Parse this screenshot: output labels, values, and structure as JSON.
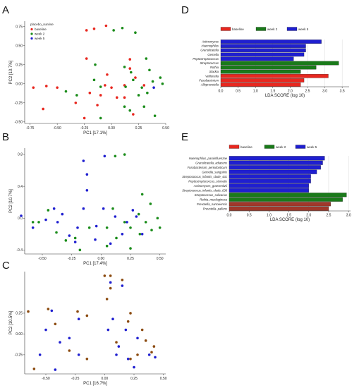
{
  "colors": {
    "baseline": "#e8271f",
    "week2": "#1a8c1a",
    "week5": "#1f1fd0",
    "pcoaC_a": "#8b4a0f",
    "pcoaC_b": "#1f1fd0",
    "ldaRed": "#e8271f",
    "ldaGreen": "#1a7a1a",
    "ldaBlue": "#1f1fd0",
    "ldaBrown": "#a0382a"
  },
  "panels": {
    "A": "A",
    "B": "B",
    "C": "C",
    "D": "D",
    "E": "E"
  },
  "chart_data": [
    {
      "type": "scatter",
      "panel": "A",
      "xlabel": "PC1 [17.1%]",
      "ylabel": "PC2 [10.7%]",
      "xlim": [
        -0.8,
        0.5
      ],
      "ylim": [
        -0.52,
        0.82
      ],
      "xticks": [
        "-0.75",
        "-0.50",
        "-0.25",
        "0.00",
        "0.25",
        "0.50"
      ],
      "xtick_vals": [
        -0.75,
        -0.5,
        -0.25,
        0,
        0.25,
        0.5
      ],
      "yticks": [
        "0.75",
        "0.50",
        "0.25",
        "0.00",
        "-0.25",
        "-0.50"
      ],
      "ytick_vals": [
        0.75,
        0.5,
        0.25,
        0,
        -0.25,
        -0.5
      ],
      "legend_title": "placebo_sunrise",
      "series": [
        {
          "name": "baseline",
          "color_key": "baseline",
          "points": [
            [
              -0.23,
              0.7
            ],
            [
              -0.16,
              0.72
            ],
            [
              -0.05,
              0.76
            ],
            [
              -0.23,
              0.33
            ],
            [
              -0.04,
              0.12
            ],
            [
              0.17,
              0.2
            ],
            [
              0.22,
              0.08
            ],
            [
              -0.06,
              -0.02
            ],
            [
              0.0,
              -0.05
            ],
            [
              0.12,
              -0.02
            ],
            [
              0.3,
              -0.02
            ],
            [
              -0.72,
              -0.05
            ],
            [
              -0.6,
              -0.03
            ],
            [
              -0.5,
              -0.05
            ],
            [
              -0.2,
              -0.12
            ],
            [
              -0.1,
              -0.15
            ],
            [
              0.05,
              -0.18
            ],
            [
              0.12,
              -0.18
            ],
            [
              -0.33,
              -0.25
            ],
            [
              -0.13,
              -0.28
            ],
            [
              -0.63,
              -0.33
            ],
            [
              -0.25,
              -0.45
            ],
            [
              0.2,
              -0.4
            ],
            [
              0.17,
              0.32
            ]
          ]
        },
        {
          "name": "week 2",
          "color_key": "week2",
          "points": [
            [
              0.1,
              0.73
            ],
            [
              0.02,
              0.7
            ],
            [
              0.22,
              0.67
            ],
            [
              0.32,
              0.33
            ],
            [
              -0.15,
              0.25
            ],
            [
              0.12,
              0.22
            ],
            [
              0.18,
              0.15
            ],
            [
              0.35,
              0.18
            ],
            [
              0.45,
              0.08
            ],
            [
              -0.16,
              0.05
            ],
            [
              0.2,
              0.05
            ],
            [
              0.38,
              0.03
            ],
            [
              0.47,
              0.0
            ],
            [
              -0.1,
              -0.04
            ],
            [
              0.13,
              -0.04
            ],
            [
              0.28,
              -0.05
            ],
            [
              -0.42,
              -0.1
            ],
            [
              0.25,
              -0.15
            ],
            [
              0.33,
              -0.12
            ],
            [
              -0.32,
              -0.15
            ],
            [
              0.12,
              -0.3
            ],
            [
              0.17,
              -0.35
            ],
            [
              0.3,
              -0.3
            ],
            [
              -0.1,
              -0.45
            ],
            [
              0.4,
              -0.42
            ]
          ]
        },
        {
          "name": "week 5",
          "color_key": "week5",
          "points": [
            [
              0.39,
              -0.05
            ]
          ]
        }
      ]
    },
    {
      "type": "scatter",
      "panel": "B",
      "xlabel": "PC1 [17.4%]",
      "ylabel": "PC2 [10.7%]",
      "xlim": [
        -0.65,
        0.55
      ],
      "ylim": [
        -0.45,
        0.88
      ],
      "xticks": [
        "-0.50",
        "-0.25",
        "0.00",
        "0.25",
        "0.50"
      ],
      "xtick_vals": [
        -0.5,
        -0.25,
        0,
        0.25,
        0.5
      ],
      "yticks": [
        "0.8",
        "0.4",
        "0.0",
        "-0.4"
      ],
      "ytick_vals": [
        0.8,
        0.4,
        0,
        -0.4
      ],
      "series": [
        {
          "name": "week 2",
          "color_key": "week2",
          "points": [
            [
              0.2,
              0.8
            ],
            [
              0.12,
              0.78
            ],
            [
              0.35,
              0.3
            ],
            [
              0.42,
              0.18
            ],
            [
              0.1,
              0.12
            ],
            [
              -0.45,
              0.1
            ],
            [
              0.32,
              0.05
            ],
            [
              0.48,
              0.0
            ],
            [
              -0.58,
              -0.05
            ],
            [
              -0.53,
              -0.05
            ],
            [
              0.2,
              -0.05
            ],
            [
              0.38,
              -0.05
            ],
            [
              0.5,
              -0.12
            ],
            [
              -0.1,
              -0.12
            ],
            [
              0.05,
              -0.12
            ],
            [
              0.25,
              -0.12
            ],
            [
              -0.38,
              -0.18
            ],
            [
              0.13,
              -0.25
            ],
            [
              -0.22,
              -0.25
            ],
            [
              0.33,
              -0.2
            ],
            [
              -0.18,
              -0.4
            ],
            [
              0.25,
              -0.38
            ],
            [
              0.05,
              -0.35
            ],
            [
              0.43,
              -0.15
            ],
            [
              -0.3,
              -0.28
            ]
          ]
        },
        {
          "name": "week 5",
          "color_key": "week5",
          "points": [
            [
              0.03,
              0.78
            ],
            [
              -0.15,
              0.72
            ],
            [
              -0.12,
              0.55
            ],
            [
              -0.12,
              0.35
            ],
            [
              -0.4,
              0.12
            ],
            [
              -0.15,
              0.12
            ],
            [
              0.02,
              0.12
            ],
            [
              0.27,
              0.1
            ],
            [
              -0.68,
              0.03
            ],
            [
              -0.33,
              0.05
            ],
            [
              -0.47,
              -0.02
            ],
            [
              -0.37,
              -0.05
            ],
            [
              0.12,
              0.02
            ],
            [
              0.3,
              0.02
            ],
            [
              -0.58,
              -0.12
            ],
            [
              -0.2,
              -0.12
            ],
            [
              -0.04,
              -0.1
            ],
            [
              0.22,
              -0.05
            ],
            [
              -0.27,
              -0.22
            ],
            [
              0.18,
              -0.2
            ],
            [
              -0.22,
              -0.3
            ],
            [
              -0.05,
              -0.27
            ],
            [
              0.08,
              -0.32
            ],
            [
              0.35,
              -0.2
            ]
          ]
        }
      ]
    },
    {
      "type": "scatter",
      "panel": "C",
      "xlabel": "PC1 [16.7%]",
      "ylabel": "PC2 [10.5%]",
      "xlim": [
        -0.68,
        0.52
      ],
      "ylim": [
        -0.48,
        0.75
      ],
      "xticks": [
        "-0.50",
        "-0.25",
        "0.00",
        "0.25",
        "0.50"
      ],
      "xtick_vals": [
        -0.5,
        -0.25,
        0,
        0.25,
        0.5
      ],
      "yticks": [
        "0.25",
        "0.00",
        "-0.25"
      ],
      "ytick_vals": [
        0.25,
        0,
        -0.25
      ],
      "series": [
        {
          "name": "week 2",
          "color_key": "pcoaC_a",
          "points": [
            [
              0.0,
              0.7
            ],
            [
              0.05,
              0.7
            ],
            [
              0.15,
              0.65
            ],
            [
              0.05,
              0.55
            ],
            [
              0.02,
              0.42
            ],
            [
              -0.23,
              0.27
            ],
            [
              -0.15,
              0.22
            ],
            [
              0.22,
              0.25
            ],
            [
              -0.48,
              0.3
            ],
            [
              0.2,
              0.15
            ],
            [
              -0.65,
              0.27
            ],
            [
              0.32,
              0.05
            ],
            [
              -0.42,
              0.12
            ],
            [
              0.35,
              -0.08
            ],
            [
              0.1,
              -0.1
            ],
            [
              -0.3,
              -0.2
            ],
            [
              0.28,
              -0.25
            ],
            [
              -0.15,
              -0.3
            ],
            [
              0.4,
              -0.22
            ],
            [
              -0.6,
              -0.42
            ],
            [
              0.22,
              -0.3
            ],
            [
              0.42,
              -0.15
            ]
          ]
        },
        {
          "name": "week 5",
          "color_key": "pcoaC_b",
          "points": [
            [
              0.05,
              0.62
            ],
            [
              0.15,
              0.58
            ],
            [
              -0.45,
              0.28
            ],
            [
              -0.22,
              0.18
            ],
            [
              0.07,
              0.18
            ],
            [
              -0.5,
              0.05
            ],
            [
              0.03,
              0.05
            ],
            [
              0.18,
              0.05
            ],
            [
              -0.3,
              -0.05
            ],
            [
              0.28,
              -0.05
            ],
            [
              -0.38,
              -0.1
            ],
            [
              0.12,
              -0.15
            ],
            [
              -0.55,
              -0.25
            ],
            [
              -0.22,
              -0.25
            ],
            [
              0.1,
              -0.25
            ],
            [
              0.38,
              -0.25
            ],
            [
              0.2,
              -0.3
            ],
            [
              0.43,
              -0.28
            ],
            [
              -0.42,
              -0.43
            ],
            [
              0.25,
              -0.4
            ]
          ]
        }
      ]
    },
    {
      "type": "bar",
      "panel": "D",
      "orientation": "horizontal",
      "xlabel": "LDA SCORE (log 10)",
      "xlim": [
        0,
        3.7
      ],
      "xticks": [
        "0.0",
        "0.5",
        "1.0",
        "1.5",
        "2.0",
        "2.5",
        "3.0",
        "3.5"
      ],
      "xtick_vals": [
        0,
        0.5,
        1,
        1.5,
        2,
        2.5,
        3,
        3.5
      ],
      "legend": [
        {
          "name": "baseline",
          "color_key": "ldaRed"
        },
        {
          "name": "week 2",
          "color_key": "ldaGreen"
        },
        {
          "name": "week 5",
          "color_key": "ldaBlue"
        }
      ],
      "categories": [
        "Actinomyces",
        "Haemophilus",
        "Granulicatella",
        "Gemella",
        "Peptostreptococcus",
        "Streptococcus",
        "Rothia",
        "Slackia",
        "Veillonella",
        "Fusobacterium",
        "Alloprevotella"
      ],
      "values": [
        2.9,
        2.45,
        2.45,
        2.4,
        2.1,
        3.4,
        2.75,
        2.3,
        3.1,
        2.4,
        2.3
      ],
      "group_keys": [
        "ldaBlue",
        "ldaBlue",
        "ldaBlue",
        "ldaBlue",
        "ldaBlue",
        "ldaGreen",
        "ldaGreen",
        "ldaGreen",
        "ldaRed",
        "ldaRed",
        "ldaRed"
      ]
    },
    {
      "type": "bar",
      "panel": "E",
      "orientation": "horizontal",
      "xlabel": "LDA SCORE (log 10)",
      "xlim": [
        0,
        3.05
      ],
      "xticks": [
        "0.0",
        "0.5",
        "1.0",
        "1.5",
        "2.0",
        "2.5",
        "3.0"
      ],
      "xtick_vals": [
        0,
        0.5,
        1,
        1.5,
        2,
        2.5,
        3
      ],
      "legend": [
        {
          "name": "baseline",
          "color_key": "ldaRed"
        },
        {
          "name": "week 2",
          "color_key": "ldaGreen"
        },
        {
          "name": "week 5",
          "color_key": "ldaBlue"
        }
      ],
      "categories": [
        "Haemophilus_parainfluenzae",
        "Granulicatella_adiacens",
        "Fusobacterium_periodonticum",
        "Gemella_sanguinis",
        "Streptococcus_infantis_clade_431",
        "Peptostreptococcus_stomatis",
        "Actinomyces_graevenitzii",
        "Streptococcus_infantis_clade_638",
        "Streptococcus_salivarius",
        "Rothia_mucilaginosa",
        "Prevotella_nanceiensis",
        "Prevotella_pallens"
      ],
      "values": [
        2.4,
        2.35,
        2.3,
        2.2,
        2.05,
        2.05,
        2.0,
        2.0,
        2.95,
        2.85,
        2.55,
        2.5
      ],
      "group_keys": [
        "ldaBlue",
        "ldaBlue",
        "ldaBlue",
        "ldaBlue",
        "ldaBlue",
        "ldaBlue",
        "ldaBlue",
        "ldaBlue",
        "ldaGreen",
        "ldaGreen",
        "ldaBrown",
        "ldaBrown"
      ]
    }
  ]
}
